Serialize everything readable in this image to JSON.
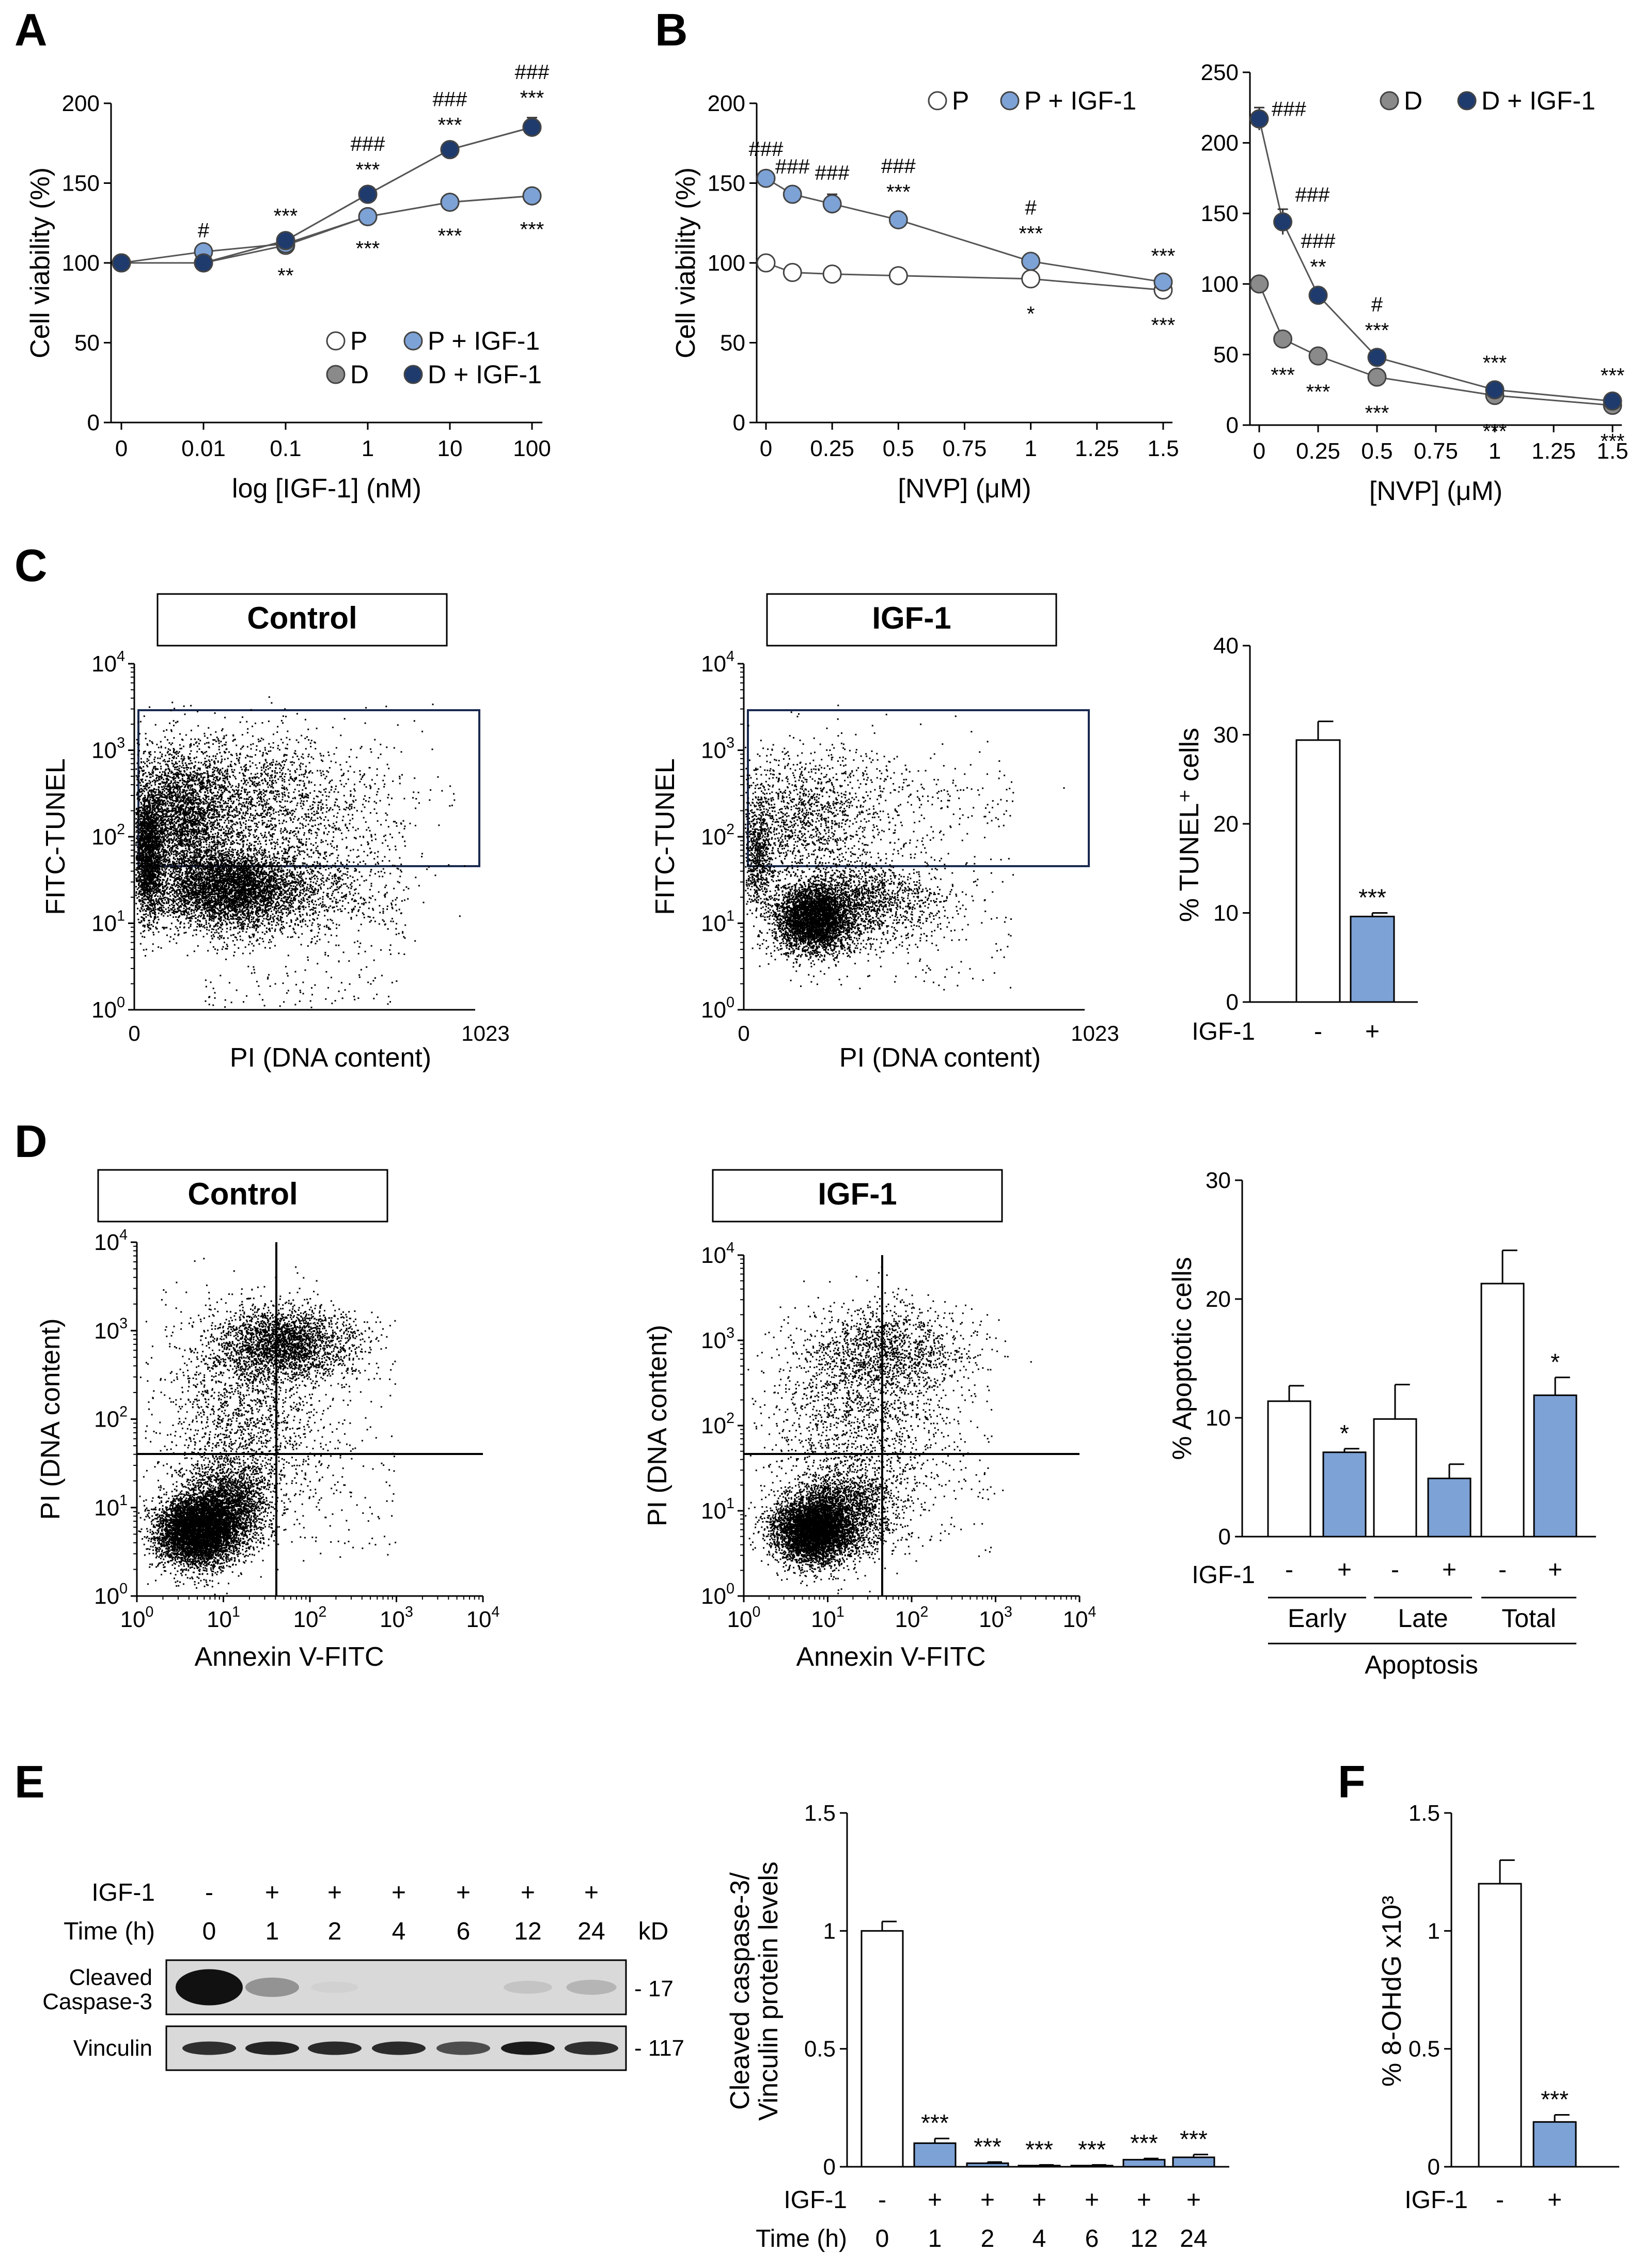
{
  "colors": {
    "blank": "#ffffff",
    "light_blue": "#7da2d6",
    "gray": "#8a8a8a",
    "dark_blue": "#1f3b6e",
    "gate_box": "#1a2a50",
    "band": "#111111",
    "blot_bg": "#d9d9d9"
  },
  "panel_letters": [
    "A",
    "B",
    "C",
    "D",
    "E",
    "F"
  ],
  "chart_data": [
    {
      "id": "A",
      "type": "line",
      "xscale": "categorical-log",
      "x": [
        "0",
        "0.01",
        "0.1",
        "1",
        "10",
        "100"
      ],
      "xlabel": "log [IGF-1] (nM)",
      "ylabel": "Cell viability (%)",
      "ylim": [
        0,
        200
      ],
      "yticks": [
        "0",
        "50",
        "100",
        "150",
        "200"
      ],
      "legend_placement": "bottom-right",
      "series": [
        {
          "name": "P",
          "color": "blank",
          "values": [
            100,
            100,
            111,
            129,
            138,
            142
          ],
          "errors": [
            0,
            0,
            0,
            0,
            0,
            0
          ]
        },
        {
          "name": "P + IGF-1",
          "color": "light_blue",
          "values": [
            100,
            107,
            112,
            129,
            138,
            142
          ],
          "errors": [
            0,
            0,
            0,
            0,
            0,
            0
          ]
        },
        {
          "name": "D",
          "color": "gray",
          "values": [
            100,
            100,
            114,
            143,
            171,
            185
          ],
          "errors": [
            0,
            0,
            0,
            0,
            0,
            0
          ]
        },
        {
          "name": "D + IGF-1",
          "color": "dark_blue",
          "values": [
            100,
            100,
            114,
            143,
            171,
            185
          ],
          "errors": [
            0,
            0,
            3,
            3,
            4,
            6
          ]
        }
      ],
      "annotations": [
        {
          "x": "0.01",
          "y": 107,
          "text": "#",
          "pos": "above"
        },
        {
          "x": "0.1",
          "y": 116,
          "text": "***",
          "pos": "above"
        },
        {
          "x": "0.1",
          "y": 111,
          "text": "**",
          "pos": "below"
        },
        {
          "x": "1",
          "y": 145,
          "text": "***",
          "pos": "above"
        },
        {
          "x": "1",
          "y": 145,
          "text": "###",
          "pos": "above2"
        },
        {
          "x": "1",
          "y": 128,
          "text": "***",
          "pos": "below"
        },
        {
          "x": "10",
          "y": 173,
          "text": "***",
          "pos": "above"
        },
        {
          "x": "10",
          "y": 173,
          "text": "###",
          "pos": "above2"
        },
        {
          "x": "10",
          "y": 136,
          "text": "***",
          "pos": "below"
        },
        {
          "x": "100",
          "y": 190,
          "text": "***",
          "pos": "above"
        },
        {
          "x": "100",
          "y": 190,
          "text": "###",
          "pos": "above2"
        },
        {
          "x": "100",
          "y": 140,
          "text": "***",
          "pos": "below"
        }
      ]
    },
    {
      "id": "B1",
      "type": "line",
      "x": [
        0,
        0.1,
        0.25,
        0.5,
        1,
        1.5
      ],
      "xticks": [
        "0",
        "0.25",
        "0.5",
        "0.75",
        "1",
        "1.25",
        "1.5"
      ],
      "xlabel": "[NVP] (μM)",
      "ylabel": "Cell viability (%)",
      "ylim": [
        0,
        200
      ],
      "yticks": [
        "0",
        "50",
        "100",
        "150",
        "200"
      ],
      "legend_placement": "top-right",
      "series": [
        {
          "name": "P",
          "color": "blank",
          "values": [
            100,
            94,
            93,
            92,
            90,
            83
          ],
          "errors": [
            3,
            2,
            3,
            2,
            3,
            3
          ]
        },
        {
          "name": "P + IGF-1",
          "color": "light_blue",
          "values": [
            153,
            143,
            137,
            127,
            101,
            88
          ],
          "errors": [
            4,
            3,
            6,
            4,
            3,
            3
          ]
        }
      ],
      "annotations": [
        {
          "x": 0,
          "y": 158,
          "text": "###",
          "pos": "above"
        },
        {
          "x": 0.1,
          "y": 147,
          "text": "###",
          "pos": "above"
        },
        {
          "x": 0.25,
          "y": 143,
          "text": "###",
          "pos": "above"
        },
        {
          "x": 0.5,
          "y": 131,
          "text": "***",
          "pos": "above"
        },
        {
          "x": 0.5,
          "y": 131,
          "text": "###",
          "pos": "above2"
        },
        {
          "x": 1,
          "y": 105,
          "text": "***",
          "pos": "above"
        },
        {
          "x": 1,
          "y": 105,
          "text": "#",
          "pos": "above2"
        },
        {
          "x": 1,
          "y": 87,
          "text": "*",
          "pos": "below"
        },
        {
          "x": 1.5,
          "y": 91,
          "text": "***",
          "pos": "above"
        },
        {
          "x": 1.5,
          "y": 80,
          "text": "***",
          "pos": "below"
        }
      ]
    },
    {
      "id": "B2",
      "type": "line",
      "x": [
        0,
        0.1,
        0.25,
        0.5,
        1,
        1.5
      ],
      "xticks": [
        "0",
        "0.25",
        "0.5",
        "0.75",
        "1",
        "1.25",
        "1.5"
      ],
      "xlabel": "[NVP] (μM)",
      "ylim": [
        0,
        250
      ],
      "yticks": [
        "0",
        "50",
        "100",
        "150",
        "200",
        "250"
      ],
      "legend_placement": "top-right",
      "series": [
        {
          "name": "D",
          "color": "gray",
          "values": [
            100,
            61,
            49,
            34,
            21,
            14
          ],
          "errors": [
            4,
            3,
            3,
            4,
            3,
            2
          ]
        },
        {
          "name": "D + IGF-1",
          "color": "dark_blue",
          "values": [
            217,
            144,
            92,
            48,
            25,
            17
          ],
          "errors": [
            8,
            9,
            3,
            4,
            2,
            2
          ]
        }
      ],
      "annotations": [
        {
          "x": 0,
          "y": 222,
          "text": "###",
          "pos": "right"
        },
        {
          "x": 0.1,
          "y": 148,
          "text": "###",
          "pos": "rightup"
        },
        {
          "x": 0.25,
          "y": 97,
          "text": "**",
          "pos": "above"
        },
        {
          "x": 0.25,
          "y": 97,
          "text": "###",
          "pos": "above2"
        },
        {
          "x": 0.5,
          "y": 52,
          "text": "***",
          "pos": "above"
        },
        {
          "x": 0.5,
          "y": 52,
          "text": "#",
          "pos": "above2"
        },
        {
          "x": 1,
          "y": 29,
          "text": "***",
          "pos": "above"
        },
        {
          "x": 1.5,
          "y": 20,
          "text": "***",
          "pos": "above"
        },
        {
          "x": 0.1,
          "y": 57,
          "text": "***",
          "pos": "below"
        },
        {
          "x": 0.25,
          "y": 45,
          "text": "***",
          "pos": "below"
        },
        {
          "x": 0.5,
          "y": 30,
          "text": "***",
          "pos": "below"
        },
        {
          "x": 1,
          "y": 17,
          "text": "***",
          "pos": "below"
        },
        {
          "x": 1.5,
          "y": 10,
          "text": "***",
          "pos": "below"
        }
      ]
    },
    {
      "id": "C-bar",
      "type": "bar",
      "categories": [
        "-",
        "+"
      ],
      "row_label": "IGF-1",
      "values": [
        29.4,
        9.6
      ],
      "errors": [
        2.1,
        0.4
      ],
      "colors": [
        "blank",
        "light_blue"
      ],
      "sig": [
        "",
        "***"
      ],
      "ylabel": "% TUNEL⁺ cells",
      "ylim": [
        0,
        40
      ],
      "yticks": [
        "0",
        "10",
        "20",
        "30",
        "40"
      ]
    },
    {
      "id": "D-bar",
      "type": "bar",
      "categories": [
        "-",
        "+",
        "-",
        "+",
        "-",
        "+"
      ],
      "row_label": "IGF-1",
      "groups": [
        "Early",
        "Late",
        "Total"
      ],
      "group_title": "Apoptosis",
      "values": [
        11.4,
        7.1,
        9.9,
        4.9,
        21.3,
        11.9
      ],
      "errors": [
        1.3,
        0.3,
        2.9,
        1.2,
        2.8,
        1.5
      ],
      "colors": [
        "blank",
        "light_blue",
        "blank",
        "light_blue",
        "blank",
        "light_blue"
      ],
      "sig": [
        "",
        "*",
        "",
        "",
        "",
        "*"
      ],
      "ylabel": "% Apoptotic cells",
      "ylim": [
        0,
        30
      ],
      "yticks": [
        "0",
        "10",
        "20",
        "30"
      ]
    },
    {
      "id": "E-bar",
      "type": "bar",
      "categories": [
        "0",
        "1",
        "2",
        "4",
        "6",
        "12",
        "24"
      ],
      "igf_row": [
        "-",
        "+",
        "+",
        "+",
        "+",
        "+",
        "+"
      ],
      "row_labels": [
        "IGF-1",
        "Time (h)"
      ],
      "values": [
        1.0,
        0.1,
        0.015,
        0.005,
        0.005,
        0.03,
        0.04
      ],
      "errors": [
        0.04,
        0.02,
        0.005,
        0.003,
        0.003,
        0.005,
        0.012
      ],
      "colors": [
        "blank",
        "light_blue",
        "light_blue",
        "light_blue",
        "light_blue",
        "light_blue",
        "light_blue"
      ],
      "sig": [
        "",
        "***",
        "***",
        "***",
        "***",
        "***",
        "***"
      ],
      "ylabel": [
        "Cleaved caspase-3/",
        "Vinculin protein levels"
      ],
      "ylim": [
        0,
        1.5
      ],
      "yticks": [
        "0",
        "0.5",
        "1",
        "1.5"
      ]
    },
    {
      "id": "F-bar",
      "type": "bar",
      "categories": [
        "-",
        "+"
      ],
      "row_label": "IGF-1",
      "values": [
        1.2,
        0.19
      ],
      "errors": [
        0.1,
        0.03
      ],
      "colors": [
        "blank",
        "light_blue"
      ],
      "sig": [
        "",
        "***"
      ],
      "ylabel": "% 8-OHdG x10³",
      "ylim": [
        0,
        1.5
      ],
      "yticks": [
        "0",
        "0.5",
        "1",
        "1.5"
      ]
    }
  ],
  "flow": {
    "C": {
      "plots": [
        {
          "title": "Control",
          "dots": "tunel_control"
        },
        {
          "title": "IGF-1",
          "dots": "tunel_igf"
        }
      ],
      "xlabel": "PI (DNA content)",
      "ylabel": "FITC-TUNEL",
      "xticks": [
        "0",
        "1023"
      ],
      "ytick_base": "10",
      "ytick_exps": [
        "0",
        "1",
        "2",
        "3",
        "4"
      ]
    },
    "D": {
      "plots": [
        {
          "title": "Control",
          "dots": "annexin_control"
        },
        {
          "title": "IGF-1",
          "dots": "annexin_igf"
        }
      ],
      "xlabel": "Annexin V-FITC",
      "ylabel": "PI (DNA content)",
      "tick_base": "10",
      "tick_exps": [
        "0",
        "1",
        "2",
        "3",
        "4"
      ]
    }
  },
  "western": {
    "igf_label": "IGF-1",
    "time_label": "Time (h)",
    "kd_label": "kD",
    "igf": [
      "-",
      "+",
      "+",
      "+",
      "+",
      "+",
      "+"
    ],
    "times": [
      "0",
      "1",
      "2",
      "4",
      "6",
      "12",
      "24"
    ],
    "rows": [
      {
        "label": [
          "Cleaved",
          "Caspase-3"
        ],
        "kd": "- 17",
        "intensity": [
          1.0,
          0.35,
          0.04,
          0.0,
          0.0,
          0.1,
          0.18
        ]
      },
      {
        "label": [
          "Vinculin"
        ],
        "kd": "- 117",
        "intensity": [
          0.85,
          0.9,
          0.88,
          0.87,
          0.7,
          0.95,
          0.85
        ]
      }
    ]
  }
}
